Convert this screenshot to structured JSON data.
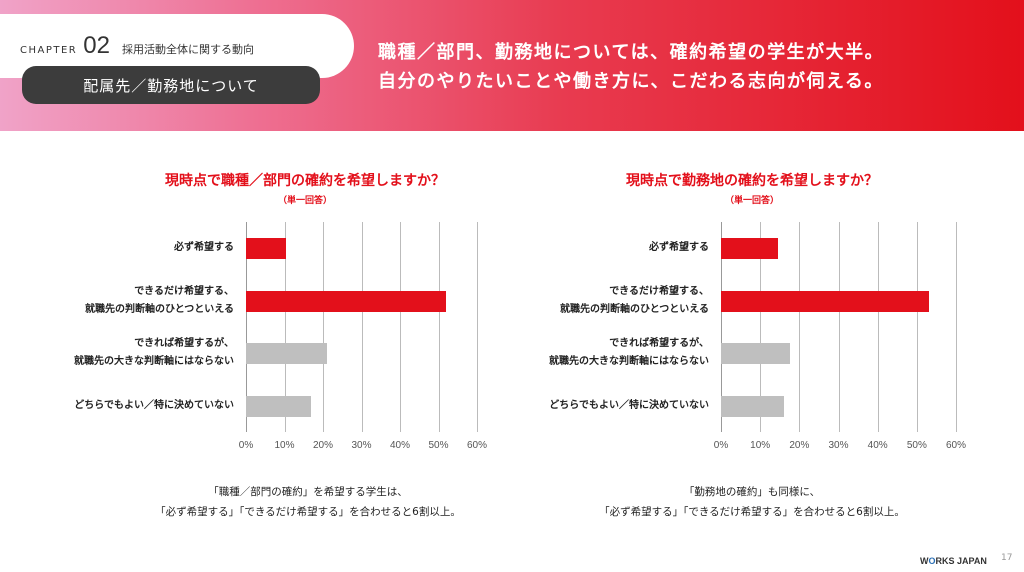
{
  "header": {
    "chapter_label": "CHAPTER",
    "chapter_number": "02",
    "chapter_title": "採用活動全体に関する動向",
    "section_title": "配属先／勤務地について",
    "headline_lines": [
      "職種／部門、勤務地については、確約希望の学生が大半。",
      "自分のやりたいことや働き方に、こだわる志向が伺える。"
    ]
  },
  "chart_data": [
    {
      "type": "bar",
      "orientation": "horizontal",
      "title": "現時点で職種／部門の確約を希望しますか？",
      "note": "（単一回答）",
      "categories": [
        "必ず希望する",
        "できるだけ希望する、\n就職先の判断軸のひとつといえる",
        "できれば希望するが、\n就職先の大きな判断軸にはならない",
        "どちらでもよい／特に決めていない"
      ],
      "values": [
        10.4,
        52.0,
        21.0,
        16.9
      ],
      "colors": [
        "#e3101b",
        "#e3101b",
        "#bfbfbf",
        "#bfbfbf"
      ],
      "xlim": [
        0,
        60
      ],
      "ticks": [
        "0%",
        "10%",
        "20%",
        "30%",
        "40%",
        "50%",
        "60%"
      ],
      "grid": true,
      "caption_lines": [
        "「職種／部門の確約」を希望する学生は、",
        "「必ず希望する」「できるだけ希望する」を合わせると6割以上。"
      ]
    },
    {
      "type": "bar",
      "orientation": "horizontal",
      "title": "現時点で勤務地の確約を希望しますか？",
      "note": "（単一回答）",
      "categories": [
        "必ず希望する",
        "できるだけ希望する、\n就職先の判断軸のひとつといえる",
        "できれば希望するが、\n就職先の大きな判断軸にはならない",
        "どちらでもよい／特に決めていない"
      ],
      "values": [
        14.5,
        53.2,
        17.5,
        16.0
      ],
      "colors": [
        "#e3101b",
        "#e3101b",
        "#bfbfbf",
        "#bfbfbf"
      ],
      "xlim": [
        0,
        60
      ],
      "ticks": [
        "0%",
        "10%",
        "20%",
        "30%",
        "40%",
        "50%",
        "60%"
      ],
      "grid": true,
      "caption_lines": [
        "「勤務地の確約」も同様に、",
        "「必ず希望する」「できるだけ希望する」を合わせると6割以上。"
      ]
    }
  ],
  "footer": {
    "logo_a": "W",
    "logo_b": "O",
    "logo_c": "RKS JAPAN",
    "page": "17"
  }
}
